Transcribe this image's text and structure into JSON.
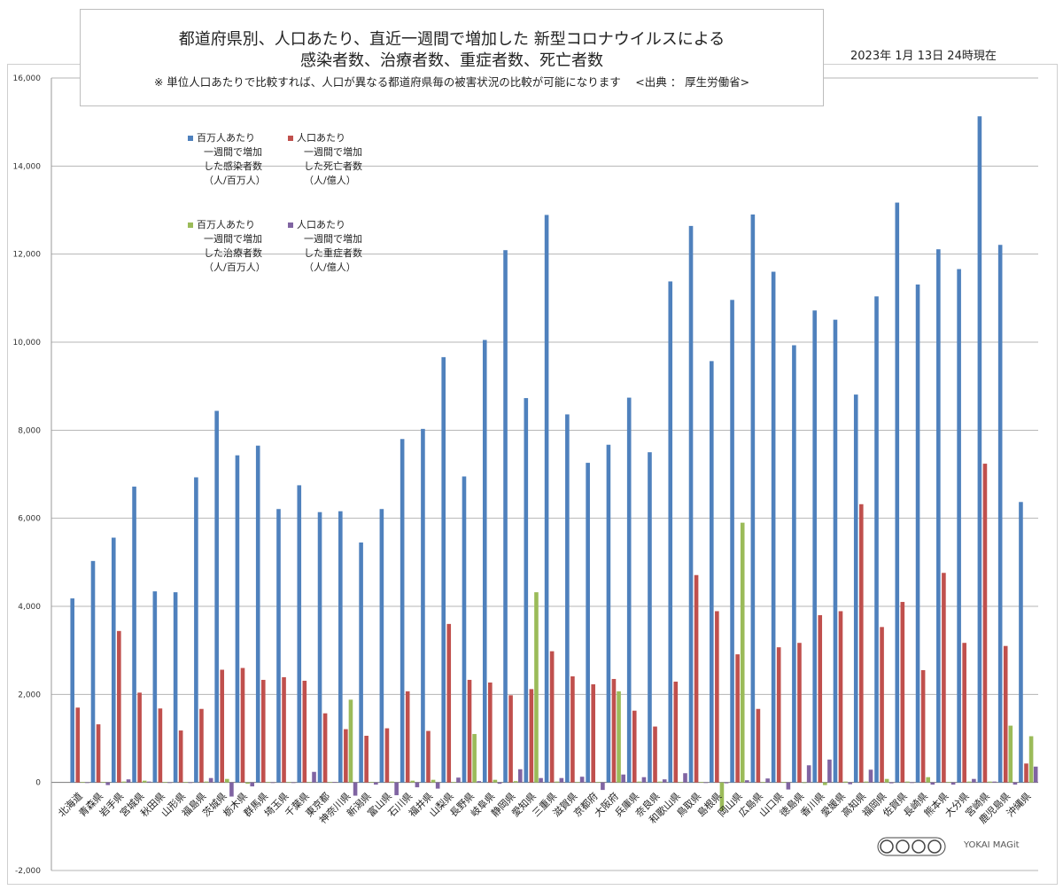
{
  "header": {
    "title_line1": "都道府県別、人口あたり、直近一週間で増加した 新型コロナウイルスによる",
    "title_line2": "感染者数、治療者数、重症者数、死亡者数",
    "note": "※ 単位人口あたりで比較すれば、人口が異なる都道府県毎の被害状況の比較が可能になります 　<出典 ： 厚生労働省>",
    "date": "2023年 1月 13日 24時現在"
  },
  "legend": {
    "items": [
      {
        "lines": [
          "百万人あたり",
          "一週間で増加",
          "した感染者数",
          "（人/百万人）"
        ],
        "color": "#4f81bd"
      },
      {
        "lines": [
          "人口あたり",
          "一週間で増加",
          "した死亡者数",
          "（人/億人）"
        ],
        "color": "#c0504d"
      },
      {
        "lines": [
          "百万人あたり",
          "一週間で増加",
          "した治療者数",
          "（人/百万人）"
        ],
        "color": "#9bbb59"
      },
      {
        "lines": [
          "人口あたり",
          "一週間で増加",
          "した重症者数",
          "（人/億人）"
        ],
        "color": "#8064a2"
      }
    ]
  },
  "watermark": {
    "text": "YOKAI MAGit"
  },
  "chart_data": {
    "type": "bar",
    "ylim": [
      -2000,
      16000
    ],
    "yticks": [
      -2000,
      0,
      2000,
      4000,
      6000,
      8000,
      10000,
      12000,
      14000,
      16000
    ],
    "ytick_labels": [
      "-2,000",
      "0",
      "2,000",
      "4,000",
      "6,000",
      "8,000",
      "10,000",
      "12,000",
      "14,000",
      "16,000"
    ],
    "grid": true,
    "categories": [
      "北海道",
      "青森県",
      "岩手県",
      "宮城県",
      "秋田県",
      "山形県",
      "福島県",
      "茨城県",
      "栃木県",
      "群馬県",
      "埼玉県",
      "千葉県",
      "東京都",
      "神奈川県",
      "新潟県",
      "富山県",
      "石川県",
      "福井県",
      "山梨県",
      "長野県",
      "岐阜県",
      "静岡県",
      "愛知県",
      "三重県",
      "滋賀県",
      "京都府",
      "大阪府",
      "兵庫県",
      "奈良県",
      "和歌山県",
      "鳥取県",
      "島根県",
      "岡山県",
      "広島県",
      "山口県",
      "徳島県",
      "香川県",
      "愛媛県",
      "高知県",
      "福岡県",
      "佐賀県",
      "長崎県",
      "熊本県",
      "大分県",
      "宮崎県",
      "鹿児島県",
      "沖縄県"
    ],
    "series": [
      {
        "name": "百万人あたり一週間で増加した感染者数（人/百万人）",
        "color": "#4f81bd",
        "values": [
          4180,
          5030,
          5560,
          6720,
          4340,
          4320,
          6930,
          8440,
          7430,
          7650,
          6210,
          6750,
          6140,
          6160,
          5450,
          6210,
          7800,
          8030,
          9660,
          6950,
          10050,
          12090,
          8730,
          12890,
          8360,
          7260,
          7670,
          8740,
          7500,
          11380,
          12640,
          9570,
          10960,
          12900,
          11600,
          9930,
          10720,
          10510,
          8810,
          11040,
          13170,
          11310,
          12110,
          11660,
          15130,
          12210,
          6370
        ]
      },
      {
        "name": "人口あたり一週間で増加した死亡者数（人/億人）",
        "color": "#c0504d",
        "values": [
          1700,
          1320,
          3440,
          2040,
          1680,
          1180,
          1670,
          2560,
          2600,
          2330,
          2390,
          2310,
          1570,
          1210,
          1060,
          1230,
          2070,
          1170,
          3600,
          2330,
          2270,
          1980,
          2120,
          2980,
          2410,
          2230,
          2350,
          1630,
          1270,
          2290,
          4710,
          3890,
          2910,
          1670,
          3070,
          3170,
          3800,
          3890,
          6320,
          3530,
          4100,
          2550,
          4760,
          3170,
          7240,
          3100,
          430
        ]
      },
      {
        "name": "百万人あたり一週間で増加した治療者数（人/百万人）",
        "color": "#9bbb59",
        "values": [
          10,
          10,
          20,
          40,
          10,
          10,
          20,
          80,
          -30,
          10,
          10,
          10,
          10,
          1880,
          10,
          20,
          40,
          60,
          10,
          1100,
          60,
          30,
          4320,
          20,
          10,
          10,
          2070,
          20,
          20,
          10,
          10,
          -640,
          5900,
          10,
          10,
          -10,
          -60,
          20,
          20,
          80,
          20,
          120,
          10,
          20,
          20,
          1290,
          1050
        ]
      },
      {
        "name": "人口あたり一週間で増加した重症者数（人/億人）",
        "color": "#8064a2",
        "values": [
          0,
          -60,
          70,
          20,
          0,
          -10,
          100,
          -320,
          -90,
          0,
          0,
          240,
          10,
          -300,
          -50,
          -290,
          -110,
          -140,
          110,
          30,
          -30,
          300,
          100,
          100,
          130,
          -170,
          180,
          120,
          70,
          210,
          0,
          -20,
          50,
          90,
          -160,
          390,
          520,
          -40,
          290,
          -20,
          0,
          -50,
          -50,
          80,
          20,
          -50,
          360
        ]
      }
    ]
  }
}
